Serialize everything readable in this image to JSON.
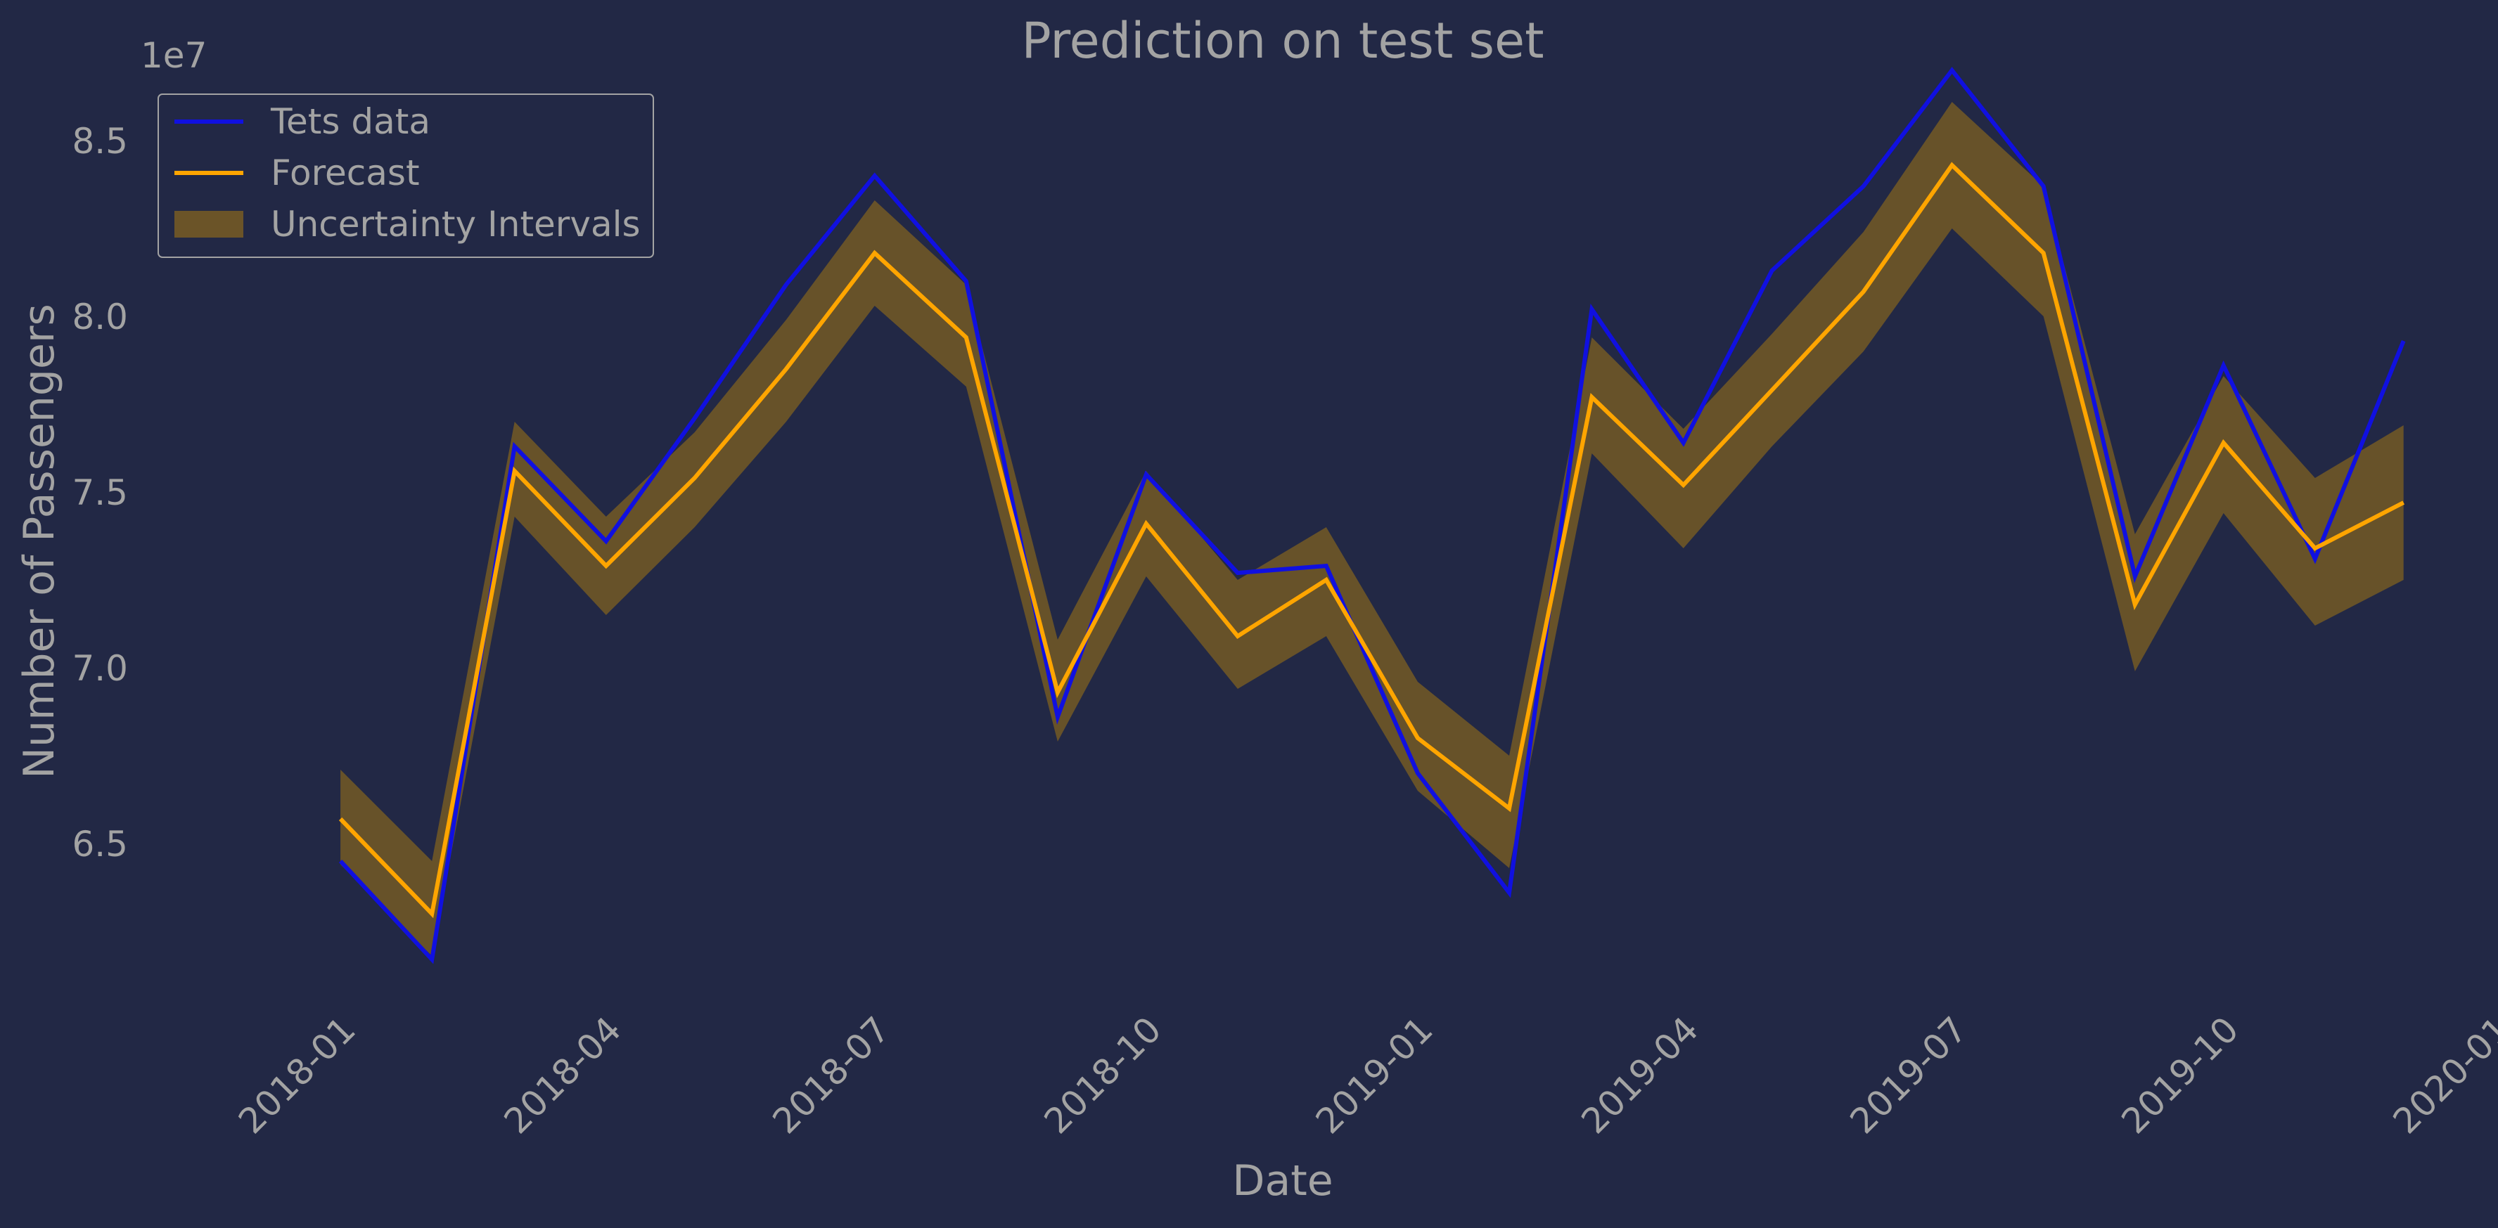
{
  "colors": {
    "background": "#222845",
    "text": "#a3a3a3",
    "test_line": "#1010e0",
    "forecast_line": "#ffa500",
    "band_fill": "#6b5428"
  },
  "chart_data": {
    "type": "line",
    "title": "Prediction on test set",
    "xlabel": "Date",
    "ylabel": "Number of Passengers",
    "y_offset_label": "1e7",
    "y_scale_factor": 10000000,
    "grid": false,
    "legend_position": "top-left",
    "xlim": [
      "2017-11-15",
      "2020-01-01"
    ],
    "ylim": [
      60500000,
      88000000
    ],
    "x_ticks": [
      "2018-01",
      "2018-04",
      "2018-07",
      "2018-10",
      "2019-01",
      "2019-04",
      "2019-07",
      "2019-10",
      "2020-01"
    ],
    "y_ticks": [
      "6.5",
      "7.0",
      "7.5",
      "8.0",
      "8.5"
    ],
    "x": [
      "2017-12-31",
      "2018-01-31",
      "2018-02-28",
      "2018-03-31",
      "2018-04-30",
      "2018-05-31",
      "2018-06-30",
      "2018-07-31",
      "2018-08-31",
      "2018-09-30",
      "2018-10-31",
      "2018-11-30",
      "2018-12-31",
      "2019-01-31",
      "2019-02-28",
      "2019-03-31",
      "2019-04-30",
      "2019-05-31",
      "2019-06-30",
      "2019-07-31",
      "2019-08-31",
      "2019-09-30",
      "2019-10-31",
      "2019-11-30"
    ],
    "series": [
      {
        "name": "Tets data",
        "kind": "line",
        "color": "#1010e0",
        "values": [
          64500000,
          61700000,
          76300000,
          73600000,
          77100000,
          80900000,
          84000000,
          81000000,
          68600000,
          75500000,
          72700000,
          72900000,
          67000000,
          63600000,
          80200000,
          76400000,
          81300000,
          83700000,
          87000000,
          83700000,
          72600000,
          78600000,
          73100000,
          79300000
        ]
      },
      {
        "name": "Forecast",
        "kind": "line",
        "color": "#ffa500",
        "values": [
          65700000,
          63000000,
          75600000,
          72900000,
          75400000,
          78500000,
          81800000,
          79400000,
          69300000,
          74100000,
          70900000,
          72500000,
          68000000,
          66000000,
          77700000,
          75200000,
          77900000,
          80700000,
          84300000,
          81800000,
          71800000,
          76400000,
          73400000,
          74700000
        ]
      },
      {
        "name": "Uncertainty Intervals",
        "kind": "band",
        "color": "#6b5428",
        "lower": [
          64400000,
          61800000,
          74300000,
          71500000,
          74000000,
          77000000,
          80300000,
          78000000,
          67900000,
          72600000,
          69400000,
          70900000,
          66500000,
          64300000,
          76100000,
          73400000,
          76300000,
          79000000,
          82500000,
          80000000,
          69900000,
          74400000,
          71200000,
          72500000
        ],
        "upper": [
          67100000,
          64500000,
          77000000,
          74300000,
          76700000,
          79900000,
          83300000,
          80900000,
          70800000,
          75600000,
          72500000,
          74000000,
          69600000,
          67500000,
          79400000,
          76800000,
          79500000,
          82400000,
          86100000,
          83700000,
          73800000,
          78300000,
          75400000,
          76900000
        ]
      }
    ]
  }
}
